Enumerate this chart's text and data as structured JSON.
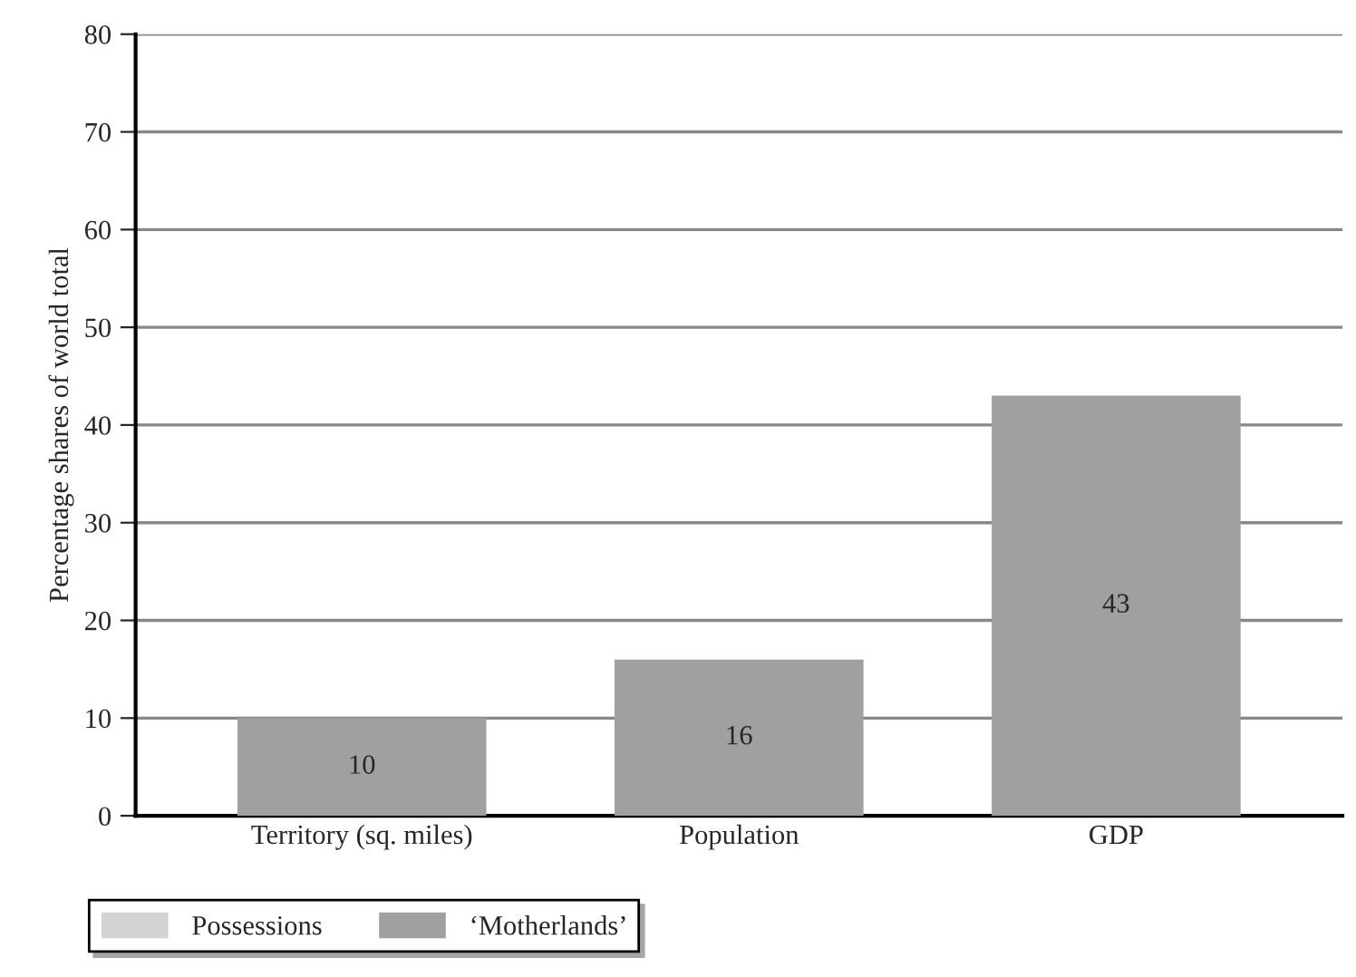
{
  "chart_data": {
    "type": "bar",
    "ylabel": "Percentage shares of world total",
    "categories": [
      "Territory (sq. miles)",
      "Population",
      "GDP"
    ],
    "series": [
      {
        "name": "Possessions",
        "color": "#d3d3d3",
        "values": [
          null,
          null,
          null
        ]
      },
      {
        "name": "‘Motherlands’",
        "color": "#a0a0a0",
        "values": [
          10,
          16,
          43
        ],
        "value_labels": [
          "10",
          "16",
          "43"
        ]
      }
    ],
    "ylim": [
      0,
      80
    ],
    "yticks": [
      0,
      10,
      20,
      30,
      40,
      50,
      60,
      70,
      80
    ],
    "grid": "y",
    "legend": "bottom left"
  }
}
